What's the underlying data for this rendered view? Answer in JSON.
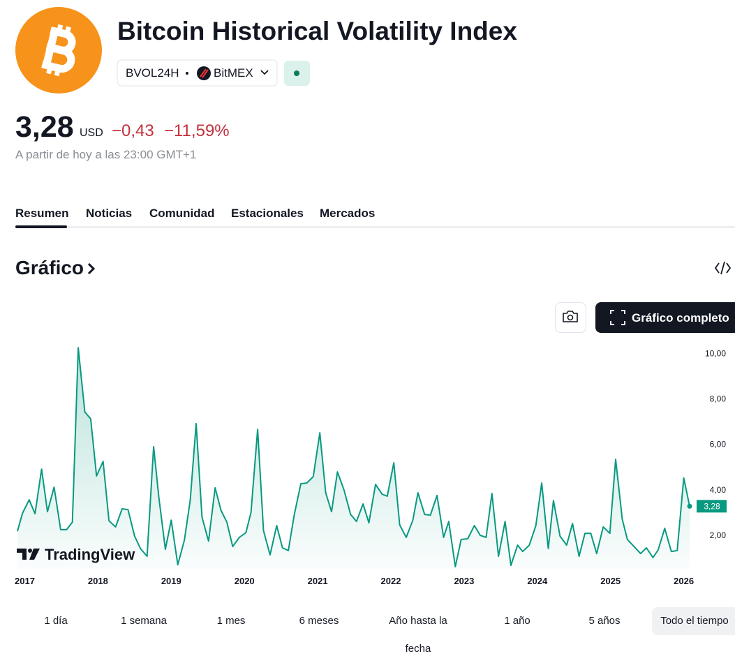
{
  "header": {
    "title": "Bitcoin Historical Volatility Index",
    "ticker": "BVOL24H",
    "exchange": "BitMEX",
    "price": "3,28",
    "currency": "USD",
    "change": "−0,43",
    "change_pct": "−11,59%",
    "timestamp": "A partir de hoy a las 23:00 GMT+1"
  },
  "tabs": [
    "Resumen",
    "Noticias",
    "Comunidad",
    "Estacionales",
    "Mercados"
  ],
  "section_title": "Gráfico",
  "full_chart_button": "Gráfico completo",
  "watermark": "TradingView",
  "ranges": [
    "1 día",
    "1 semana",
    "1 mes",
    "6 meses",
    "Año hasta la fecha",
    "1 año",
    "5 años",
    "Todo el tiempo"
  ],
  "chart_data": {
    "type": "line",
    "x": [
      2016.9,
      2016.97,
      2017.06,
      2017.14,
      2017.23,
      2017.31,
      2017.4,
      2017.49,
      2017.57,
      2017.65,
      2017.73,
      2017.82,
      2017.9,
      2017.98,
      2018.07,
      2018.15,
      2018.24,
      2018.33,
      2018.41,
      2018.5,
      2018.58,
      2018.67,
      2018.76,
      2018.83,
      2018.92,
      2019.0,
      2019.09,
      2019.18,
      2019.26,
      2019.34,
      2019.42,
      2019.51,
      2019.6,
      2019.68,
      2019.76,
      2019.84,
      2019.93,
      2020.02,
      2020.09,
      2020.18,
      2020.26,
      2020.35,
      2020.44,
      2020.52,
      2020.6,
      2020.68,
      2020.77,
      2020.85,
      2020.94,
      2021.03,
      2021.11,
      2021.19,
      2021.27,
      2021.36,
      2021.45,
      2021.53,
      2021.62,
      2021.7,
      2021.79,
      2021.88,
      2021.95,
      2022.04,
      2022.12,
      2022.21,
      2022.3,
      2022.37,
      2022.46,
      2022.54,
      2022.63,
      2022.72,
      2022.79,
      2022.88,
      2022.96,
      2023.05,
      2023.14,
      2023.22,
      2023.3,
      2023.38,
      2023.47,
      2023.56,
      2023.64,
      2023.73,
      2023.8,
      2023.89,
      2023.98,
      2024.06,
      2024.15,
      2024.22,
      2024.31,
      2024.4,
      2024.48,
      2024.57,
      2024.65,
      2024.73,
      2024.81,
      2024.9,
      2024.99,
      2025.07,
      2025.16,
      2025.23,
      2025.32,
      2025.41,
      2025.49,
      2025.58,
      2025.65,
      2025.74,
      2025.83,
      2025.91,
      2026.0,
      2026.08
    ],
    "series": [
      {
        "color": "#089981",
        "values": [
          2.18,
          2.98,
          3.56,
          2.95,
          4.91,
          3.04,
          4.12,
          2.25,
          2.25,
          2.58,
          10.25,
          7.43,
          7.12,
          4.61,
          5.25,
          2.64,
          2.37,
          3.17,
          3.13,
          1.97,
          1.42,
          1.08,
          5.9,
          3.69,
          1.39,
          2.67,
          0.71,
          1.79,
          3.56,
          6.91,
          2.8,
          1.75,
          4.09,
          3.1,
          2.58,
          1.51,
          1.91,
          2.12,
          3.01,
          6.66,
          2.21,
          1.14,
          2.43,
          1.45,
          1.33,
          2.89,
          4.27,
          4.3,
          4.58,
          6.51,
          3.87,
          3.04,
          4.79,
          3.99,
          2.92,
          2.61,
          3.38,
          2.55,
          4.24,
          3.81,
          3.72,
          5.19,
          2.46,
          1.91,
          2.67,
          3.87,
          2.92,
          2.89,
          3.75,
          1.91,
          2.61,
          0.62,
          1.82,
          1.85,
          2.43,
          2.0,
          1.91,
          3.84,
          1.08,
          2.61,
          0.68,
          1.57,
          1.29,
          1.57,
          2.43,
          4.3,
          1.42,
          3.53,
          1.97,
          1.57,
          2.52,
          1.08,
          2.09,
          2.09,
          1.2,
          2.37,
          2.09,
          5.34,
          2.71,
          1.82,
          1.51,
          1.2,
          1.45,
          1.02,
          1.36,
          2.31,
          1.29,
          1.33,
          4.52,
          3.28
        ]
      }
    ],
    "xlim": [
      2016.9,
      2026.08
    ],
    "xticks": [
      2017,
      2018,
      2019,
      2020,
      2021,
      2022,
      2023,
      2024,
      2025,
      2026
    ],
    "ylim": [
      0.5,
      10.5
    ],
    "yticks": [
      {
        "value": 2,
        "label": "2,00"
      },
      {
        "value": 4,
        "label": "4,00"
      },
      {
        "value": 6,
        "label": "6,00"
      },
      {
        "value": 8,
        "label": "8,00"
      },
      {
        "value": 10,
        "label": "10,00"
      }
    ],
    "grid": false
  }
}
